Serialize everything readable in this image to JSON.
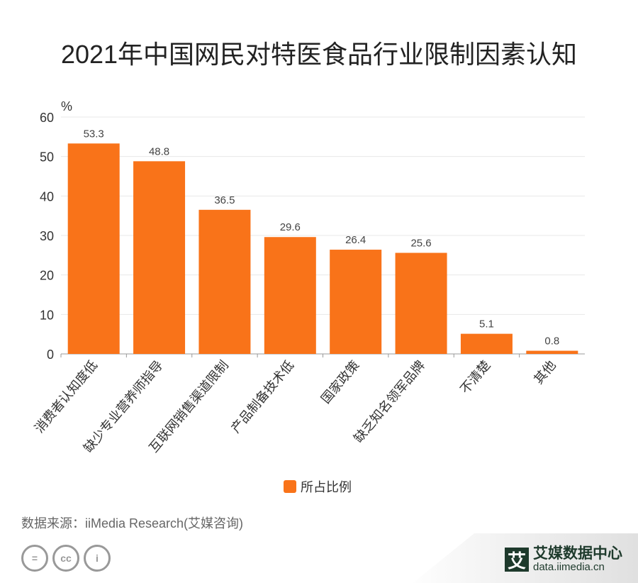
{
  "chart_data": {
    "type": "bar",
    "title": "2021年中国网民对特医食品行业限制因素认知",
    "ylabel": "%",
    "xlabel": "",
    "ylim": [
      0,
      60
    ],
    "yticks": [
      0,
      10,
      20,
      30,
      40,
      50,
      60
    ],
    "grid": true,
    "categories": [
      "消费者认知度低",
      "缺少专业营养师指导",
      "互联网销售渠道限制",
      "产品制备技术低",
      "国家政策",
      "缺乏知名领军品牌",
      "不清楚",
      "其他"
    ],
    "series": [
      {
        "name": "所占比例",
        "values": [
          53.3,
          48.8,
          36.5,
          29.6,
          26.4,
          25.6,
          5.1,
          0.8
        ],
        "color": "#f97319"
      }
    ],
    "legend_position": "bottom-center"
  },
  "source": "数据来源：iiMedia Research(艾媒咨询)",
  "brand": {
    "logo": "艾",
    "name": "艾媒数据中心",
    "url": "data.iimedia.cn"
  },
  "license_icons": [
    "=",
    "cc",
    "i"
  ]
}
